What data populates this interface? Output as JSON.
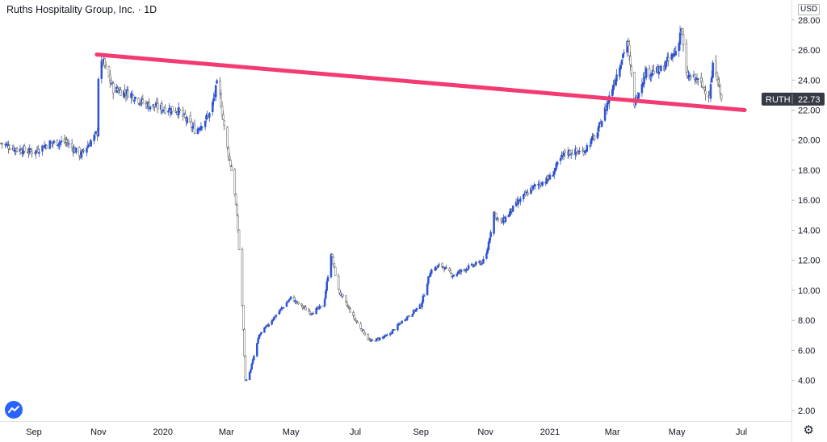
{
  "header": {
    "title": "Ruths Hospitality Group, Inc. · 1D"
  },
  "price_axis": {
    "currency": "USD",
    "symbol": "RUTH",
    "last_price": "22.73"
  },
  "icons": {
    "logo": "tradingview-logo-icon",
    "settings": "gear-icon"
  },
  "colors": {
    "trendline": "#f23b72",
    "candle_up": "#2c53d6",
    "candle_down": "#555555",
    "badge": "#363a45"
  },
  "chart_data": {
    "type": "candlestick",
    "title": "Ruths Hospitality Group, Inc. · 1D",
    "symbol": "RUTH",
    "ylim": [
      1.3,
      28.9
    ],
    "y_ticks": [
      "2.00",
      "4.00",
      "6.00",
      "8.00",
      "10.00",
      "12.00",
      "14.00",
      "16.00",
      "18.00",
      "20.00",
      "22.00",
      "24.00",
      "26.00",
      "28.00"
    ],
    "x_ticks": [
      "Sep",
      "Nov",
      "2020",
      "Mar",
      "May",
      "Jul",
      "Sep",
      "Nov",
      "2021",
      "Mar",
      "May",
      "Jul"
    ],
    "x_tick_dates": [
      "2019-09",
      "2019-11",
      "2020-01",
      "2020-03",
      "2020-05",
      "2020-07",
      "2020-09",
      "2020-11",
      "2021-01",
      "2021-03",
      "2021-05",
      "2021-07"
    ],
    "grid": false,
    "last_price": 22.73,
    "trendline": {
      "start": {
        "date": "2019-11-01",
        "price": 25.7
      },
      "end": {
        "date": "2021-07-01",
        "price": 22.0
      }
    },
    "close_series": [
      {
        "date": "2019-08-01",
        "close": 19.8
      },
      {
        "date": "2019-08-15",
        "close": 19.4
      },
      {
        "date": "2019-09-01",
        "close": 19.2
      },
      {
        "date": "2019-09-15",
        "close": 19.8
      },
      {
        "date": "2019-10-01",
        "close": 19.9
      },
      {
        "date": "2019-10-15",
        "close": 19.0
      },
      {
        "date": "2019-10-31",
        "close": 20.5
      },
      {
        "date": "2019-11-01",
        "close": 24.2
      },
      {
        "date": "2019-11-05",
        "close": 25.3
      },
      {
        "date": "2019-11-15",
        "close": 23.4
      },
      {
        "date": "2019-12-01",
        "close": 23.1
      },
      {
        "date": "2019-12-15",
        "close": 22.4
      },
      {
        "date": "2020-01-01",
        "close": 22.1
      },
      {
        "date": "2020-01-15",
        "close": 22.0
      },
      {
        "date": "2020-02-01",
        "close": 20.6
      },
      {
        "date": "2020-02-15",
        "close": 21.8
      },
      {
        "date": "2020-02-22",
        "close": 24.0
      },
      {
        "date": "2020-03-01",
        "close": 19.8
      },
      {
        "date": "2020-03-08",
        "close": 17.3
      },
      {
        "date": "2020-03-12",
        "close": 14.0
      },
      {
        "date": "2020-03-16",
        "close": 9.0
      },
      {
        "date": "2020-03-19",
        "close": 4.0
      },
      {
        "date": "2020-03-23",
        "close": 4.5
      },
      {
        "date": "2020-04-01",
        "close": 7.0
      },
      {
        "date": "2020-04-15",
        "close": 8.2
      },
      {
        "date": "2020-05-01",
        "close": 9.5
      },
      {
        "date": "2020-05-10",
        "close": 9.0
      },
      {
        "date": "2020-05-20",
        "close": 8.5
      },
      {
        "date": "2020-06-01",
        "close": 9.0
      },
      {
        "date": "2020-06-08",
        "close": 12.5
      },
      {
        "date": "2020-06-15",
        "close": 10.0
      },
      {
        "date": "2020-07-01",
        "close": 8.0
      },
      {
        "date": "2020-07-15",
        "close": 6.6
      },
      {
        "date": "2020-08-01",
        "close": 7.0
      },
      {
        "date": "2020-08-15",
        "close": 8.0
      },
      {
        "date": "2020-09-01",
        "close": 9.0
      },
      {
        "date": "2020-09-10",
        "close": 11.3
      },
      {
        "date": "2020-09-20",
        "close": 11.7
      },
      {
        "date": "2020-10-01",
        "close": 11.0
      },
      {
        "date": "2020-10-15",
        "close": 11.5
      },
      {
        "date": "2020-11-01",
        "close": 12.0
      },
      {
        "date": "2020-11-09",
        "close": 15.2
      },
      {
        "date": "2020-11-15",
        "close": 14.4
      },
      {
        "date": "2020-12-01",
        "close": 15.8
      },
      {
        "date": "2020-12-15",
        "close": 16.8
      },
      {
        "date": "2021-01-01",
        "close": 17.5
      },
      {
        "date": "2021-01-15",
        "close": 19.2
      },
      {
        "date": "2021-02-01",
        "close": 19.2
      },
      {
        "date": "2021-02-15",
        "close": 20.5
      },
      {
        "date": "2021-03-01",
        "close": 23.5
      },
      {
        "date": "2021-03-10",
        "close": 25.5
      },
      {
        "date": "2021-03-15",
        "close": 26.6
      },
      {
        "date": "2021-03-22",
        "close": 22.5
      },
      {
        "date": "2021-04-01",
        "close": 24.5
      },
      {
        "date": "2021-04-15",
        "close": 24.6
      },
      {
        "date": "2021-05-01",
        "close": 26.0
      },
      {
        "date": "2021-05-05",
        "close": 27.5
      },
      {
        "date": "2021-05-10",
        "close": 24.3
      },
      {
        "date": "2021-05-20",
        "close": 24.0
      },
      {
        "date": "2021-06-01",
        "close": 23.0
      },
      {
        "date": "2021-06-05",
        "close": 25.5
      },
      {
        "date": "2021-06-12",
        "close": 22.73
      }
    ]
  }
}
